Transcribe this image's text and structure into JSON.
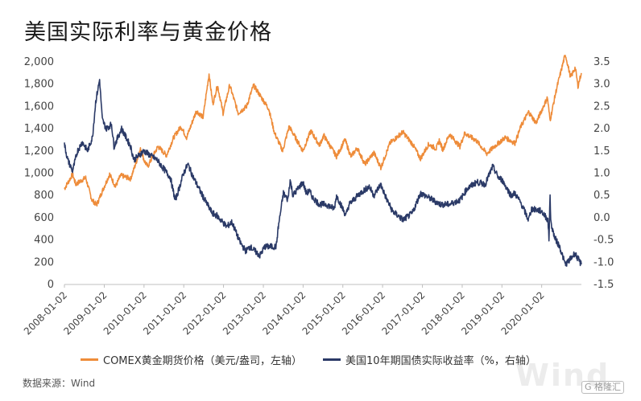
{
  "title": "美国实际利率与黄金价格",
  "source": "数据来源：Wind",
  "watermark": "Wind",
  "badge": "G 格隆汇",
  "chart_data": {
    "type": "line",
    "title": "美国实际利率与黄金价格",
    "x_axis": {
      "start": "2008-01-02",
      "end": "2021-01-01",
      "tick_labels": [
        "2008-01-02",
        "2009-01-02",
        "2010-01-02",
        "2011-01-02",
        "2012-01-02",
        "2013-01-02",
        "2014-01-02",
        "2015-01-02",
        "2016-01-02",
        "2017-01-02",
        "2018-01-02",
        "2019-01-02",
        "2020-01-02"
      ]
    },
    "y_left": {
      "min": 0,
      "max": 2000,
      "step": 200,
      "tick_labels": [
        "0",
        "200",
        "400",
        "600",
        "800",
        "1,000",
        "1,200",
        "1,400",
        "1,600",
        "1,800",
        "2,000"
      ]
    },
    "y_right": {
      "min": -1.5,
      "max": 3.5,
      "step": 0.5,
      "tick_labels": [
        "-1.5",
        "-1.0",
        "-0.5",
        "0.0",
        "0.5",
        "1.0",
        "1.5",
        "2.0",
        "2.5",
        "3.0",
        "3.5"
      ]
    },
    "grid": false,
    "legend_position": "bottom",
    "series": [
      {
        "name": "COMEX黄金期货价格（美元/盎司，左轴）",
        "axis": "left",
        "color": "#EE8C3A",
        "points": [
          [
            "2008-01-02",
            860
          ],
          [
            "2008-03-17",
            990
          ],
          [
            "2008-04-15",
            900
          ],
          [
            "2008-07-15",
            960
          ],
          [
            "2008-09-10",
            760
          ],
          [
            "2008-10-24",
            715
          ],
          [
            "2008-12-20",
            850
          ],
          [
            "2009-02-20",
            990
          ],
          [
            "2009-04-15",
            880
          ],
          [
            "2009-06-01",
            980
          ],
          [
            "2009-09-01",
            950
          ],
          [
            "2009-12-03",
            1220
          ],
          [
            "2010-01-05",
            1110
          ],
          [
            "2010-02-05",
            1060
          ],
          [
            "2010-05-10",
            1240
          ],
          [
            "2010-07-28",
            1160
          ],
          [
            "2010-10-01",
            1320
          ],
          [
            "2010-12-07",
            1420
          ],
          [
            "2011-01-28",
            1320
          ],
          [
            "2011-04-28",
            1560
          ],
          [
            "2011-06-28",
            1500
          ],
          [
            "2011-08-22",
            1890
          ],
          [
            "2011-09-26",
            1620
          ],
          [
            "2011-11-08",
            1790
          ],
          [
            "2011-12-29",
            1540
          ],
          [
            "2012-02-28",
            1790
          ],
          [
            "2012-05-16",
            1540
          ],
          [
            "2012-08-01",
            1600
          ],
          [
            "2012-10-04",
            1790
          ],
          [
            "2012-12-28",
            1660
          ],
          [
            "2013-02-20",
            1580
          ],
          [
            "2013-04-15",
            1360
          ],
          [
            "2013-06-28",
            1200
          ],
          [
            "2013-08-27",
            1420
          ],
          [
            "2013-12-31",
            1200
          ],
          [
            "2014-03-14",
            1380
          ],
          [
            "2014-06-02",
            1250
          ],
          [
            "2014-07-10",
            1340
          ],
          [
            "2014-11-05",
            1150
          ],
          [
            "2015-01-22",
            1300
          ],
          [
            "2015-03-17",
            1150
          ],
          [
            "2015-05-15",
            1225
          ],
          [
            "2015-07-24",
            1080
          ],
          [
            "2015-10-14",
            1185
          ],
          [
            "2015-12-17",
            1050
          ],
          [
            "2016-03-10",
            1270
          ],
          [
            "2016-07-06",
            1370
          ],
          [
            "2016-10-07",
            1255
          ],
          [
            "2016-12-15",
            1130
          ],
          [
            "2017-02-27",
            1260
          ],
          [
            "2017-05-09",
            1220
          ],
          [
            "2017-06-06",
            1295
          ],
          [
            "2017-07-07",
            1210
          ],
          [
            "2017-09-08",
            1350
          ],
          [
            "2017-12-12",
            1240
          ],
          [
            "2018-01-25",
            1360
          ],
          [
            "2018-05-15",
            1290
          ],
          [
            "2018-08-16",
            1175
          ],
          [
            "2018-10-25",
            1240
          ],
          [
            "2019-01-31",
            1320
          ],
          [
            "2019-05-02",
            1270
          ],
          [
            "2019-06-25",
            1420
          ],
          [
            "2019-09-04",
            1550
          ],
          [
            "2019-11-12",
            1450
          ],
          [
            "2020-01-07",
            1575
          ],
          [
            "2020-02-24",
            1680
          ],
          [
            "2020-03-19",
            1475
          ],
          [
            "2020-05-18",
            1760
          ],
          [
            "2020-08-06",
            2070
          ],
          [
            "2020-09-24",
            1860
          ],
          [
            "2020-11-06",
            1950
          ],
          [
            "2020-11-30",
            1780
          ],
          [
            "2020-12-31",
            1900
          ]
        ]
      },
      {
        "name": "美国10年期国债实际收益率（%，右轴）",
        "axis": "right",
        "color": "#2B3A67",
        "points": [
          [
            "2008-01-02",
            1.65
          ],
          [
            "2008-02-01",
            1.3
          ],
          [
            "2008-03-17",
            1.05
          ],
          [
            "2008-05-01",
            1.5
          ],
          [
            "2008-06-15",
            1.7
          ],
          [
            "2008-08-01",
            1.5
          ],
          [
            "2008-09-15",
            1.8
          ],
          [
            "2008-10-15",
            2.6
          ],
          [
            "2008-11-20",
            3.1
          ],
          [
            "2008-12-15",
            2.2
          ],
          [
            "2009-01-20",
            2.0
          ],
          [
            "2009-03-10",
            2.1
          ],
          [
            "2009-04-01",
            1.6
          ],
          [
            "2009-06-10",
            2.0
          ],
          [
            "2009-09-01",
            1.6
          ],
          [
            "2009-10-01",
            1.3
          ],
          [
            "2009-12-31",
            1.5
          ],
          [
            "2010-03-01",
            1.4
          ],
          [
            "2010-05-01",
            1.3
          ],
          [
            "2010-07-01",
            1.1
          ],
          [
            "2010-09-01",
            0.9
          ],
          [
            "2010-10-15",
            0.4
          ],
          [
            "2010-11-01",
            0.5
          ],
          [
            "2010-12-31",
            1.0
          ],
          [
            "2011-02-09",
            1.2
          ],
          [
            "2011-04-01",
            0.9
          ],
          [
            "2011-06-01",
            0.6
          ],
          [
            "2011-08-05",
            0.3
          ],
          [
            "2011-09-22",
            0.1
          ],
          [
            "2011-11-01",
            0.05
          ],
          [
            "2012-01-31",
            -0.2
          ],
          [
            "2012-03-20",
            -0.1
          ],
          [
            "2012-06-01",
            -0.55
          ],
          [
            "2012-07-25",
            -0.75
          ],
          [
            "2012-09-01",
            -0.65
          ],
          [
            "2012-12-01",
            -0.85
          ],
          [
            "2013-01-15",
            -0.65
          ],
          [
            "2013-04-30",
            -0.65
          ],
          [
            "2013-05-20",
            -0.2
          ],
          [
            "2013-07-05",
            0.55
          ],
          [
            "2013-08-15",
            0.4
          ],
          [
            "2013-09-05",
            0.85
          ],
          [
            "2013-10-01",
            0.5
          ],
          [
            "2013-12-31",
            0.8
          ],
          [
            "2014-01-31",
            0.55
          ],
          [
            "2014-03-01",
            0.6
          ],
          [
            "2014-04-01",
            0.45
          ],
          [
            "2014-06-01",
            0.3
          ],
          [
            "2014-08-01",
            0.3
          ],
          [
            "2014-10-15",
            0.2
          ],
          [
            "2014-11-05",
            0.5
          ],
          [
            "2015-01-30",
            0.05
          ],
          [
            "2015-03-01",
            0.3
          ],
          [
            "2015-06-10",
            0.55
          ],
          [
            "2015-09-01",
            0.7
          ],
          [
            "2015-10-15",
            0.5
          ],
          [
            "2015-12-15",
            0.75
          ],
          [
            "2016-02-11",
            0.4
          ],
          [
            "2016-04-01",
            0.15
          ],
          [
            "2016-07-08",
            -0.05
          ],
          [
            "2016-10-01",
            0.1
          ],
          [
            "2016-12-15",
            0.55
          ],
          [
            "2017-03-01",
            0.45
          ],
          [
            "2017-06-15",
            0.3
          ],
          [
            "2017-09-08",
            0.3
          ],
          [
            "2017-12-15",
            0.4
          ],
          [
            "2018-02-15",
            0.65
          ],
          [
            "2018-05-15",
            0.8
          ],
          [
            "2018-08-01",
            0.75
          ],
          [
            "2018-10-09",
            1.15
          ],
          [
            "2018-12-01",
            0.9
          ],
          [
            "2019-01-03",
            0.85
          ],
          [
            "2019-03-27",
            0.5
          ],
          [
            "2019-05-01",
            0.55
          ],
          [
            "2019-07-01",
            0.3
          ],
          [
            "2019-09-03",
            -0.05
          ],
          [
            "2019-10-01",
            0.2
          ],
          [
            "2019-12-31",
            0.15
          ],
          [
            "2020-02-28",
            -0.05
          ],
          [
            "2020-03-09",
            -0.5
          ],
          [
            "2020-03-19",
            0.55
          ],
          [
            "2020-03-25",
            -0.1
          ],
          [
            "2020-05-01",
            -0.45
          ],
          [
            "2020-06-15",
            -0.65
          ],
          [
            "2020-08-06",
            -1.05
          ],
          [
            "2020-09-15",
            -0.95
          ],
          [
            "2020-11-01",
            -0.8
          ],
          [
            "2020-12-31",
            -1.05
          ]
        ]
      }
    ]
  }
}
